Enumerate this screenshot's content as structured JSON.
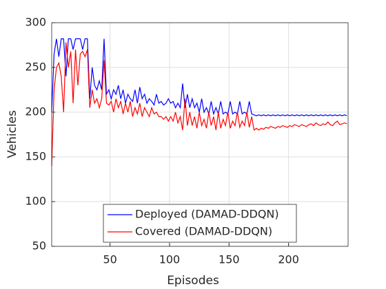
{
  "chart_data": {
    "type": "line",
    "xlabel": "Episodes",
    "ylabel": "Vehicles",
    "x": [
      1,
      3,
      5,
      7,
      9,
      11,
      13,
      15,
      17,
      19,
      21,
      23,
      25,
      27,
      29,
      31,
      33,
      35,
      37,
      39,
      41,
      43,
      45,
      47,
      49,
      51,
      53,
      55,
      57,
      59,
      61,
      63,
      65,
      67,
      69,
      71,
      73,
      75,
      77,
      79,
      81,
      83,
      85,
      87,
      89,
      91,
      93,
      95,
      97,
      99,
      101,
      103,
      105,
      107,
      109,
      111,
      113,
      115,
      117,
      119,
      121,
      123,
      125,
      127,
      129,
      131,
      133,
      135,
      137,
      139,
      141,
      143,
      145,
      147,
      149,
      151,
      153,
      155,
      157,
      159,
      161,
      163,
      165,
      167,
      169,
      171,
      173,
      175,
      177,
      179,
      181,
      183,
      185,
      187,
      189,
      191,
      193,
      195,
      197,
      199,
      201,
      203,
      205,
      207,
      209,
      211,
      213,
      215,
      217,
      219,
      221,
      223,
      225,
      227,
      229,
      231,
      233,
      235,
      237,
      239,
      241,
      243,
      245,
      247,
      249
    ],
    "series": [
      {
        "name": "Deployed (DAMAD-DDQN)",
        "color": "#0000ff",
        "values": [
          200,
          265,
          282,
          262,
          282,
          282,
          240,
          282,
          282,
          270,
          282,
          282,
          282,
          270,
          282,
          282,
          215,
          250,
          230,
          225,
          235,
          225,
          282,
          220,
          225,
          215,
          225,
          220,
          230,
          215,
          225,
          210,
          220,
          215,
          212,
          225,
          210,
          228,
          215,
          220,
          210,
          215,
          212,
          208,
          220,
          210,
          212,
          208,
          210,
          215,
          210,
          212,
          205,
          210,
          205,
          232,
          205,
          220,
          205,
          215,
          205,
          210,
          200,
          215,
          200,
          205,
          198,
          212,
          198,
          205,
          198,
          212,
          198,
          200,
          198,
          212,
          198,
          200,
          198,
          212,
          198,
          200,
          198,
          212,
          198,
          197,
          196,
          197,
          196,
          197,
          196,
          197,
          196,
          197,
          196,
          197,
          196,
          197,
          196,
          197,
          196,
          197,
          196,
          197,
          196,
          197,
          196,
          197,
          196,
          197,
          196,
          197,
          196,
          197,
          196,
          197,
          196,
          197,
          196,
          197,
          196,
          197,
          196,
          197,
          196
        ]
      },
      {
        "name": "Covered (DAMAD-DDQN)",
        "color": "#ff0000",
        "values": [
          140,
          225,
          250,
          255,
          240,
          200,
          278,
          250,
          268,
          210,
          270,
          230,
          265,
          268,
          262,
          270,
          205,
          225,
          210,
          215,
          205,
          215,
          258,
          210,
          208,
          212,
          200,
          215,
          205,
          212,
          198,
          210,
          200,
          212,
          195,
          205,
          198,
          210,
          195,
          205,
          200,
          195,
          205,
          198,
          200,
          195,
          195,
          192,
          195,
          190,
          195,
          190,
          200,
          188,
          195,
          180,
          215,
          185,
          200,
          185,
          195,
          182,
          200,
          185,
          192,
          182,
          200,
          185,
          195,
          180,
          200,
          182,
          192,
          185,
          200,
          182,
          190,
          185,
          200,
          183,
          190,
          185,
          200,
          183,
          195,
          180,
          182,
          180,
          182,
          181,
          183,
          182,
          184,
          183,
          182,
          184,
          183,
          185,
          184,
          183,
          185,
          184,
          186,
          185,
          184,
          186,
          185,
          184,
          186,
          187,
          185,
          188,
          186,
          185,
          187,
          186,
          189,
          186,
          185,
          188,
          190,
          186,
          187,
          188,
          187
        ]
      }
    ],
    "xlim": [
      1,
      250
    ],
    "xticks": [
      50,
      100,
      150,
      200
    ],
    "ylim": [
      50,
      300
    ],
    "yticks": [
      50,
      100,
      150,
      200,
      250,
      300
    ],
    "grid": true,
    "legend": "south"
  }
}
